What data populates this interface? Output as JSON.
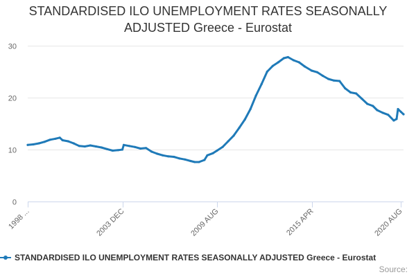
{
  "chart_data": {
    "type": "line",
    "title_lines": [
      "STANDARDISED ILO UNEMPLOYMENT RATES SEASONALLY",
      "ADJUSTED Greece - Eurostat"
    ],
    "title": "STANDARDISED ILO UNEMPLOYMENT RATES SEASONALLY ADJUSTED Greece - Eurostat",
    "xlabel": "",
    "ylabel": "",
    "x_range": [
      "1998-04",
      "2020-10"
    ],
    "ylim": [
      0,
      30
    ],
    "yticks": [
      0,
      10,
      20,
      30
    ],
    "xticks": [
      {
        "label": "1998 ...",
        "date": "1998-04"
      },
      {
        "label": "2003 DEC",
        "date": "2003-12"
      },
      {
        "label": "2009 AUG",
        "date": "2009-08"
      },
      {
        "label": "2015 APR",
        "date": "2015-04"
      },
      {
        "label": "2020 AUG",
        "date": "2020-08"
      }
    ],
    "grid": true,
    "legend": "bottom",
    "color": "#1f7ab8",
    "series": [
      {
        "name": "STANDARDISED ILO UNEMPLOYMENT RATES SEASONALLY ADJUSTED Greece - Eurostat",
        "points": [
          [
            "1998-04",
            10.9
          ],
          [
            "1998-08",
            11.0
          ],
          [
            "1998-12",
            11.2
          ],
          [
            "1999-04",
            11.5
          ],
          [
            "1999-08",
            11.9
          ],
          [
            "1999-12",
            12.1
          ],
          [
            "2000-03",
            12.3
          ],
          [
            "2000-05",
            11.8
          ],
          [
            "2000-09",
            11.6
          ],
          [
            "2001-01",
            11.2
          ],
          [
            "2001-05",
            10.7
          ],
          [
            "2001-09",
            10.6
          ],
          [
            "2002-01",
            10.8
          ],
          [
            "2002-05",
            10.6
          ],
          [
            "2002-09",
            10.4
          ],
          [
            "2003-01",
            10.1
          ],
          [
            "2003-05",
            9.8
          ],
          [
            "2003-09",
            9.9
          ],
          [
            "2003-12",
            10.0
          ],
          [
            "2004-01",
            10.9
          ],
          [
            "2004-05",
            10.7
          ],
          [
            "2004-09",
            10.5
          ],
          [
            "2005-01",
            10.2
          ],
          [
            "2005-05",
            10.3
          ],
          [
            "2005-09",
            9.6
          ],
          [
            "2006-01",
            9.2
          ],
          [
            "2006-05",
            8.9
          ],
          [
            "2006-09",
            8.7
          ],
          [
            "2007-01",
            8.6
          ],
          [
            "2007-05",
            8.3
          ],
          [
            "2007-09",
            8.1
          ],
          [
            "2008-01",
            7.8
          ],
          [
            "2008-04",
            7.6
          ],
          [
            "2008-07",
            7.6
          ],
          [
            "2008-11",
            8.0
          ],
          [
            "2009-01",
            8.9
          ],
          [
            "2009-05",
            9.3
          ],
          [
            "2009-08",
            9.8
          ],
          [
            "2009-12",
            10.5
          ],
          [
            "2010-04",
            11.6
          ],
          [
            "2010-08",
            12.7
          ],
          [
            "2010-12",
            14.2
          ],
          [
            "2011-04",
            15.8
          ],
          [
            "2011-08",
            17.8
          ],
          [
            "2011-12",
            20.4
          ],
          [
            "2012-04",
            22.6
          ],
          [
            "2012-08",
            25.0
          ],
          [
            "2012-12",
            26.1
          ],
          [
            "2013-04",
            26.8
          ],
          [
            "2013-08",
            27.6
          ],
          [
            "2013-11",
            27.8
          ],
          [
            "2014-03",
            27.2
          ],
          [
            "2014-07",
            26.8
          ],
          [
            "2014-11",
            26.0
          ],
          [
            "2015-04",
            25.2
          ],
          [
            "2015-08",
            24.9
          ],
          [
            "2015-12",
            24.2
          ],
          [
            "2016-04",
            23.6
          ],
          [
            "2016-08",
            23.3
          ],
          [
            "2016-12",
            23.2
          ],
          [
            "2017-04",
            21.8
          ],
          [
            "2017-08",
            21.0
          ],
          [
            "2017-12",
            20.8
          ],
          [
            "2018-04",
            19.8
          ],
          [
            "2018-08",
            18.8
          ],
          [
            "2018-12",
            18.4
          ],
          [
            "2019-03",
            17.6
          ],
          [
            "2019-07",
            17.1
          ],
          [
            "2019-11",
            16.7
          ],
          [
            "2020-03",
            15.6
          ],
          [
            "2020-05",
            15.9
          ],
          [
            "2020-06",
            17.8
          ],
          [
            "2020-08",
            17.3
          ],
          [
            "2020-10",
            16.8
          ]
        ]
      }
    ]
  },
  "legend": {
    "label": "STANDARDISED ILO UNEMPLOYMENT RATES SEASONALLY ADJUSTED Greece - Eurostat"
  },
  "source": {
    "label": "Source:"
  }
}
